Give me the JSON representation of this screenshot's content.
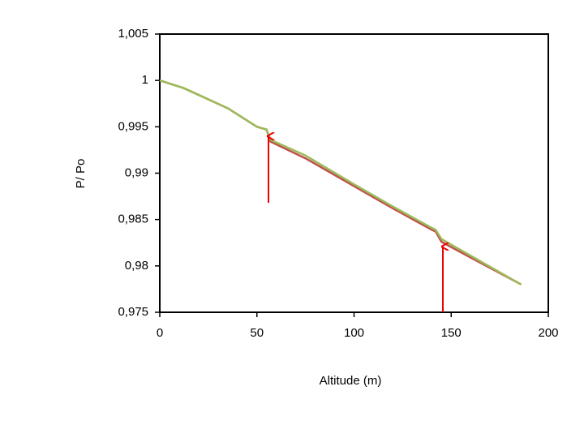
{
  "chart_data": {
    "type": "line",
    "xlabel": "Altitude (m)",
    "ylabel": "P/ Po",
    "x": [
      0,
      12,
      35,
      50,
      55,
      57,
      75,
      100,
      120,
      140,
      142,
      145,
      160,
      186
    ],
    "series": [
      {
        "color": "#c0504d",
        "values": [
          1.0,
          0.9992,
          0.997,
          0.995,
          0.9947,
          0.9934,
          0.9916,
          0.9886,
          0.9862,
          0.9839,
          0.9837,
          0.9826,
          0.9809,
          0.978
        ]
      },
      {
        "color": "#9bbb59",
        "values": [
          1.0,
          0.9992,
          0.997,
          0.995,
          0.9947,
          0.9936,
          0.9919,
          0.9888,
          0.9864,
          0.9841,
          0.9839,
          0.9829,
          0.9811,
          0.978
        ]
      }
    ],
    "xlim": [
      0,
      200
    ],
    "xticks": [
      0,
      50,
      100,
      150,
      200
    ],
    "ylim": [
      0.975,
      1.005
    ],
    "yticks": [
      {
        "value": 0.975,
        "label": "0,975"
      },
      {
        "value": 0.98,
        "label": "0,98"
      },
      {
        "value": 0.985,
        "label": "0,985"
      },
      {
        "value": 0.99,
        "label": "0,99"
      },
      {
        "value": 0.995,
        "label": "0,995"
      },
      1,
      {
        "value": 1.005,
        "label": "1,005"
      }
    ]
  }
}
